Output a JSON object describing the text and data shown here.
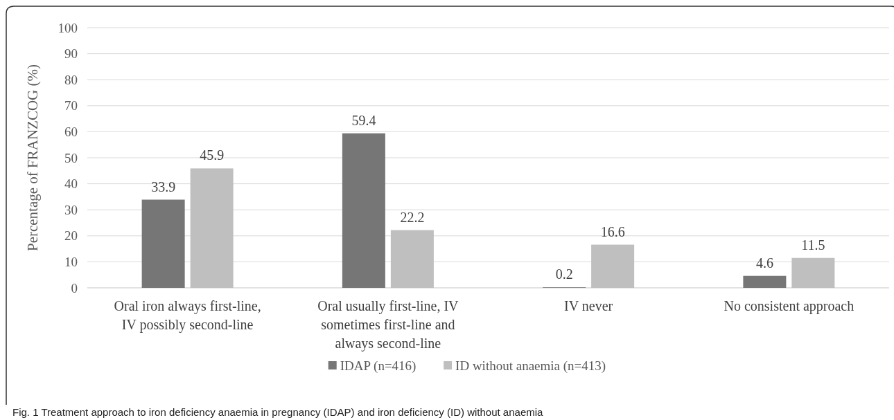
{
  "chart_data": {
    "type": "bar",
    "ylabel": "Percentage of FRANZCOG (%)",
    "categories": [
      "Oral iron always first-line, IV possibly second-line",
      "Oral usually first-line, IV sometimes first-line and always second-line",
      "IV never",
      "No consistent approach"
    ],
    "series": [
      {
        "name": "IDAP (n=416)",
        "color": "#767676",
        "values": [
          33.9,
          59.4,
          0.2,
          4.6
        ]
      },
      {
        "name": "ID without anaemia (n=413)",
        "color": "#bfbfbf",
        "values": [
          45.9,
          22.2,
          16.6,
          11.5
        ]
      }
    ],
    "ylim": [
      0,
      100
    ],
    "yticks": [
      0,
      10,
      20,
      30,
      40,
      50,
      60,
      70,
      80,
      90,
      100
    ],
    "grid": "y",
    "data_labels": true,
    "legend": "bottom",
    "annotations": [
      "Fig. 1 Treatment approach to iron deficiency anaemia in pregnancy (IDAP) and iron deficiency (ID) without anaemia"
    ]
  }
}
